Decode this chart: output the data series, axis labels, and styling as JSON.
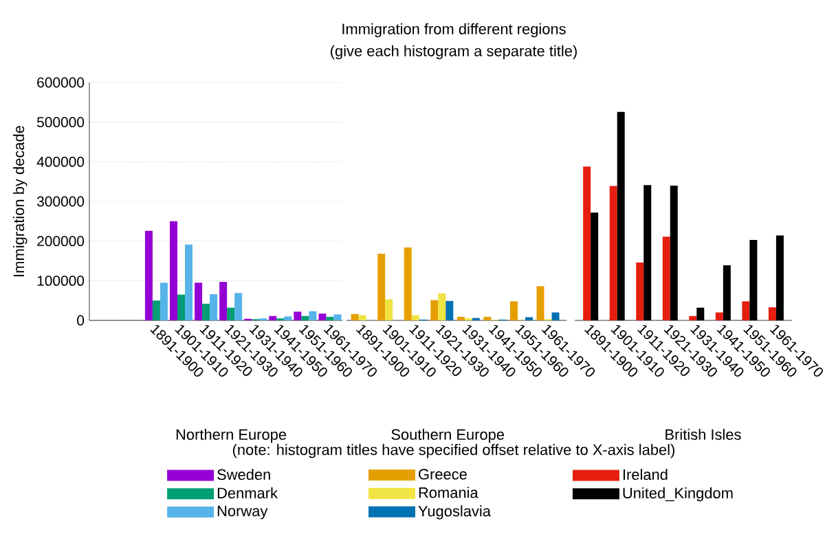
{
  "chart_data": [
    {
      "type": "bar",
      "title": "Northern Europe",
      "ylabel": "Immigration by decade",
      "annotations": [
        "Immigration from different regions",
        "(give each histogram a separate title)",
        "(note: histogram titles have specified offset relative to X-axis label)"
      ],
      "categories": [
        "1891-1900",
        "1901-1910",
        "1911-1920",
        "1921-1930",
        "1931-1940",
        "1941-1950",
        "1951-1960",
        "1961-1970"
      ],
      "series": [
        {
          "name": "Sweden",
          "color": "#9400d3",
          "values": [
            226000,
            250000,
            95000,
            97000,
            4000,
            11000,
            22000,
            17000
          ]
        },
        {
          "name": "Denmark",
          "color": "#009e73",
          "values": [
            50000,
            65000,
            42000,
            32000,
            3000,
            5000,
            11000,
            9000
          ]
        },
        {
          "name": "Norway",
          "color": "#56b4e9",
          "values": [
            95000,
            191000,
            66000,
            69000,
            5000,
            10000,
            23000,
            15000
          ]
        }
      ],
      "ylim": [
        0,
        600000
      ],
      "yticks": [
        0,
        100000,
        200000,
        300000,
        400000,
        500000,
        600000
      ],
      "grid": "y",
      "legend": "bottom"
    },
    {
      "type": "bar",
      "title": "Southern Europe",
      "categories": [
        "1891-1900",
        "1901-1910",
        "1911-1920",
        "1921-1930",
        "1931-1940",
        "1941-1950",
        "1951-1960",
        "1961-1970"
      ],
      "series": [
        {
          "name": "Greece",
          "color": "#e69f00",
          "values": [
            16000,
            168000,
            184000,
            51000,
            9000,
            9000,
            48000,
            86000
          ]
        },
        {
          "name": "Romania",
          "color": "#f0e442",
          "values": [
            13000,
            53000,
            13000,
            68000,
            5000,
            1000,
            1000,
            3000
          ]
        },
        {
          "name": "Yugoslavia",
          "color": "#0072b2",
          "values": [
            0,
            0,
            2000,
            49000,
            6000,
            2000,
            8000,
            20000
          ]
        }
      ],
      "ylim": [
        0,
        600000
      ],
      "yticks": [
        0,
        100000,
        200000,
        300000,
        400000,
        500000,
        600000
      ],
      "grid": "y",
      "legend": "bottom",
      "tick_labels": "x"
    },
    {
      "type": "bar",
      "title": "British Isles",
      "categories": [
        "1891-1900",
        "1901-1910",
        "1911-1920",
        "1921-1930",
        "1931-1940",
        "1941-1950",
        "1951-1960",
        "1961-1970"
      ],
      "series": [
        {
          "name": "Ireland",
          "color": "#e51e10",
          "values": [
            388000,
            339000,
            146000,
            211000,
            11000,
            20000,
            48000,
            33000
          ]
        },
        {
          "name": "United_Kingdom",
          "color": "#000000",
          "values": [
            272000,
            526000,
            341000,
            340000,
            32000,
            139000,
            203000,
            214000
          ]
        }
      ],
      "ylim": [
        0,
        600000
      ],
      "yticks": [
        0,
        100000,
        200000,
        300000,
        400000,
        500000,
        600000
      ],
      "grid": "y",
      "legend": "bottom",
      "tick_labels": "x"
    }
  ]
}
